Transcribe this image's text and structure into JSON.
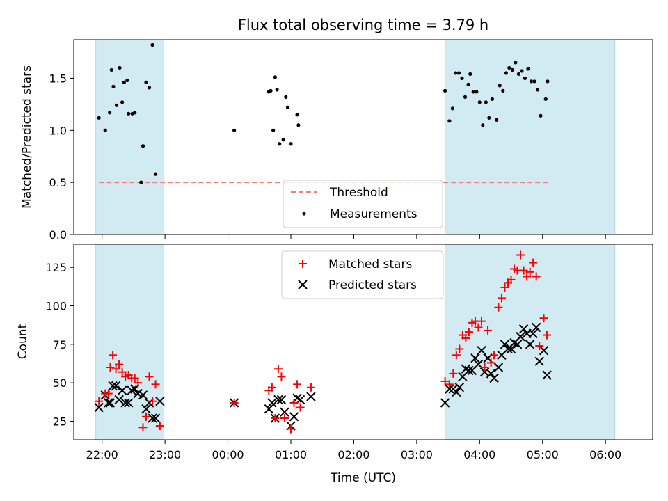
{
  "chart_data": {
    "title": "Flux total observing time = 3.79 h",
    "xlabel": "Time (UTC)",
    "x_range_hours": [
      -2.45,
      6.75
    ],
    "x_ticks": [
      {
        "h": -2,
        "label": "22:00"
      },
      {
        "h": -1,
        "label": "23:00"
      },
      {
        "h": 0,
        "label": "00:00"
      },
      {
        "h": 1,
        "label": "01:00"
      },
      {
        "h": 2,
        "label": "02:00"
      },
      {
        "h": 3,
        "label": "03:00"
      },
      {
        "h": 4,
        "label": "04:00"
      },
      {
        "h": 5,
        "label": "05:00"
      },
      {
        "h": 6,
        "label": "06:00"
      }
    ],
    "shaded_intervals": [
      {
        "start": "21:54",
        "end": "22:59"
      },
      {
        "start": "03:27",
        "end": "06:09"
      }
    ],
    "colors": {
      "shade": "#add8e6",
      "threshold": "#f08080",
      "measurements": "#000000",
      "matched": "#ff0000",
      "predicted": "#000000"
    },
    "panels": [
      {
        "type": "scatter",
        "ylabel": "Matched/Predicted stars",
        "ylim": [
          0,
          1.87
        ],
        "y_ticks": [
          "0.0",
          "0.5",
          "1.0",
          "1.5"
        ],
        "legend": {
          "placement": "lower-center",
          "entries": [
            "Threshold",
            "Measurements"
          ]
        },
        "threshold": 0.5,
        "measurements": [
          [
            -2.05,
            1.12
          ],
          [
            -1.95,
            1.0
          ],
          [
            -1.88,
            1.17
          ],
          [
            -1.85,
            1.58
          ],
          [
            -1.82,
            1.42
          ],
          [
            -1.77,
            1.24
          ],
          [
            -1.72,
            1.6
          ],
          [
            -1.68,
            1.27
          ],
          [
            -1.65,
            1.46
          ],
          [
            -1.6,
            1.48
          ],
          [
            -1.58,
            1.16
          ],
          [
            -1.52,
            1.16
          ],
          [
            -1.48,
            1.17
          ],
          [
            -1.38,
            0.5
          ],
          [
            -1.35,
            0.85
          ],
          [
            -1.3,
            1.46
          ],
          [
            -1.25,
            1.41
          ],
          [
            -1.2,
            1.82
          ],
          [
            -1.15,
            0.58
          ],
          [
            0.1,
            1.0
          ],
          [
            0.65,
            1.37
          ],
          [
            0.68,
            1.38
          ],
          [
            0.72,
            1.0
          ],
          [
            0.75,
            1.51
          ],
          [
            0.78,
            1.39
          ],
          [
            0.82,
            0.87
          ],
          [
            0.88,
            0.91
          ],
          [
            0.92,
            1.32
          ],
          [
            0.95,
            1.22
          ],
          [
            1.0,
            0.87
          ],
          [
            1.1,
            1.15
          ],
          [
            1.12,
            1.05
          ],
          [
            3.45,
            1.38
          ],
          [
            3.52,
            1.09
          ],
          [
            3.57,
            1.21
          ],
          [
            3.62,
            1.55
          ],
          [
            3.67,
            1.55
          ],
          [
            3.72,
            1.5
          ],
          [
            3.77,
            1.32
          ],
          [
            3.82,
            1.44
          ],
          [
            3.85,
            1.54
          ],
          [
            3.9,
            1.37
          ],
          [
            3.95,
            1.37
          ],
          [
            4.0,
            1.27
          ],
          [
            4.05,
            1.05
          ],
          [
            4.1,
            1.27
          ],
          [
            4.15,
            1.12
          ],
          [
            4.2,
            1.3
          ],
          [
            4.27,
            1.1
          ],
          [
            4.32,
            1.43
          ],
          [
            4.37,
            1.38
          ],
          [
            4.42,
            1.55
          ],
          [
            4.47,
            1.6
          ],
          [
            4.52,
            1.58
          ],
          [
            4.57,
            1.65
          ],
          [
            4.62,
            1.54
          ],
          [
            4.67,
            1.57
          ],
          [
            4.72,
            1.5
          ],
          [
            4.77,
            1.59
          ],
          [
            4.82,
            1.47
          ],
          [
            4.87,
            1.47
          ],
          [
            4.92,
            1.39
          ],
          [
            4.97,
            1.14
          ],
          [
            5.05,
            1.3
          ],
          [
            5.08,
            1.47
          ]
        ]
      },
      {
        "type": "scatter",
        "ylabel": "Count",
        "ylim": [
          13,
          140
        ],
        "y_ticks": [
          "25",
          "50",
          "75",
          "100",
          "125"
        ],
        "legend": {
          "placement": "upper-center",
          "entries": [
            "Matched stars",
            "Predicted stars"
          ]
        },
        "matched": [
          [
            -2.05,
            38
          ],
          [
            -1.95,
            43
          ],
          [
            -1.9,
            43
          ],
          [
            -1.87,
            60
          ],
          [
            -1.83,
            68
          ],
          [
            -1.78,
            59
          ],
          [
            -1.73,
            62
          ],
          [
            -1.68,
            57
          ],
          [
            -1.63,
            54
          ],
          [
            -1.58,
            55
          ],
          [
            -1.53,
            53
          ],
          [
            -1.48,
            53
          ],
          [
            -1.43,
            50
          ],
          [
            -1.35,
            21
          ],
          [
            -1.3,
            28
          ],
          [
            -1.25,
            54
          ],
          [
            -1.2,
            38
          ],
          [
            -1.15,
            49
          ],
          [
            -1.08,
            22
          ],
          [
            0.1,
            37
          ],
          [
            0.65,
            45
          ],
          [
            0.7,
            47
          ],
          [
            0.75,
            27
          ],
          [
            0.8,
            59
          ],
          [
            0.85,
            54
          ],
          [
            0.9,
            27
          ],
          [
            1.0,
            20
          ],
          [
            1.05,
            37
          ],
          [
            1.1,
            49
          ],
          [
            1.15,
            34
          ],
          [
            1.32,
            47
          ],
          [
            3.45,
            51
          ],
          [
            3.52,
            49
          ],
          [
            3.58,
            56
          ],
          [
            3.63,
            68
          ],
          [
            3.68,
            72
          ],
          [
            3.73,
            81
          ],
          [
            3.78,
            79
          ],
          [
            3.83,
            83
          ],
          [
            3.88,
            89
          ],
          [
            3.93,
            90
          ],
          [
            3.98,
            86
          ],
          [
            4.03,
            90
          ],
          [
            4.08,
            60
          ],
          [
            4.13,
            84
          ],
          [
            4.18,
            63
          ],
          [
            4.23,
            68
          ],
          [
            4.3,
            99
          ],
          [
            4.35,
            105
          ],
          [
            4.4,
            112
          ],
          [
            4.45,
            115
          ],
          [
            4.5,
            117
          ],
          [
            4.55,
            124
          ],
          [
            4.6,
            123
          ],
          [
            4.65,
            133
          ],
          [
            4.7,
            123
          ],
          [
            4.75,
            119
          ],
          [
            4.8,
            122
          ],
          [
            4.85,
            128
          ],
          [
            4.9,
            119
          ],
          [
            4.95,
            74
          ],
          [
            5.02,
            92
          ],
          [
            5.07,
            81
          ]
        ],
        "predicted": [
          [
            -2.05,
            34
          ],
          [
            -1.95,
            42
          ],
          [
            -1.9,
            37
          ],
          [
            -1.87,
            37
          ],
          [
            -1.83,
            48
          ],
          [
            -1.78,
            48
          ],
          [
            -1.73,
            39
          ],
          [
            -1.68,
            45
          ],
          [
            -1.63,
            37
          ],
          [
            -1.58,
            37
          ],
          [
            -1.53,
            45
          ],
          [
            -1.48,
            46
          ],
          [
            -1.43,
            43
          ],
          [
            -1.35,
            42
          ],
          [
            -1.3,
            33
          ],
          [
            -1.25,
            37
          ],
          [
            -1.2,
            27
          ],
          [
            -1.15,
            27
          ],
          [
            -1.08,
            38
          ],
          [
            0.1,
            37
          ],
          [
            0.65,
            33
          ],
          [
            0.7,
            37
          ],
          [
            0.75,
            27
          ],
          [
            0.8,
            39
          ],
          [
            0.85,
            39
          ],
          [
            0.9,
            31
          ],
          [
            1.0,
            22
          ],
          [
            1.05,
            28
          ],
          [
            1.1,
            40
          ],
          [
            1.15,
            39
          ],
          [
            1.32,
            41
          ],
          [
            3.45,
            37
          ],
          [
            3.52,
            46
          ],
          [
            3.58,
            46
          ],
          [
            3.63,
            44
          ],
          [
            3.68,
            47
          ],
          [
            3.73,
            54
          ],
          [
            3.78,
            59
          ],
          [
            3.83,
            58
          ],
          [
            3.88,
            58
          ],
          [
            3.93,
            66
          ],
          [
            3.98,
            62
          ],
          [
            4.03,
            71
          ],
          [
            4.08,
            57
          ],
          [
            4.13,
            66
          ],
          [
            4.18,
            56
          ],
          [
            4.23,
            53
          ],
          [
            4.3,
            60
          ],
          [
            4.35,
            68
          ],
          [
            4.4,
            75
          ],
          [
            4.45,
            72
          ],
          [
            4.5,
            72
          ],
          [
            4.55,
            76
          ],
          [
            4.6,
            75
          ],
          [
            4.65,
            80
          ],
          [
            4.7,
            85
          ],
          [
            4.75,
            82
          ],
          [
            4.8,
            75
          ],
          [
            4.85,
            82
          ],
          [
            4.9,
            86
          ],
          [
            4.95,
            64
          ],
          [
            5.02,
            71
          ],
          [
            5.07,
            55
          ]
        ]
      }
    ]
  }
}
